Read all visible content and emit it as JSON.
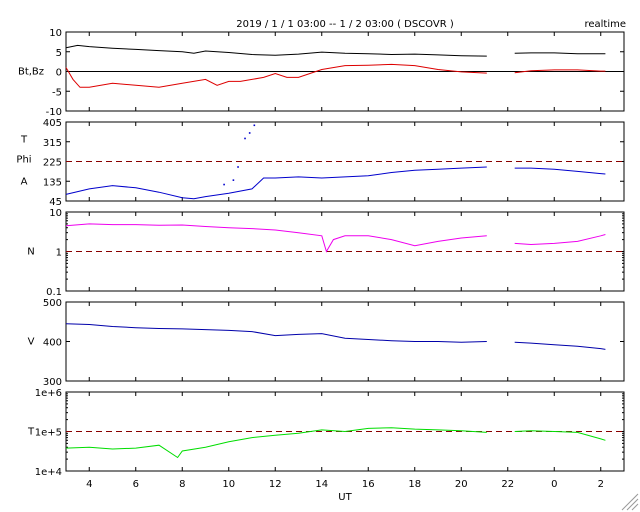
{
  "header": {
    "title": "2019 / 1 / 1  03:00 -- 1 / 2  03:00 ( DSCOVR )",
    "badge": "realtime"
  },
  "chart_data": {
    "type": "line",
    "x_axis": {
      "label": "UT",
      "ticks": [
        "4",
        "6",
        "8",
        "10",
        "12",
        "14",
        "16",
        "18",
        "20",
        "22",
        "0",
        "2"
      ],
      "tick_hours": [
        4,
        6,
        8,
        10,
        12,
        14,
        16,
        18,
        20,
        22,
        24,
        26
      ],
      "range_hours": [
        3,
        27
      ],
      "data_gap_hours": [
        21.1,
        22.3
      ]
    },
    "panels": [
      {
        "ylabel": "Bt,Bz",
        "ylim": [
          -10,
          10
        ],
        "scale": "linear",
        "yticks": [
          "10",
          "5",
          "0",
          "-5",
          "-10"
        ],
        "ytick_values": [
          10,
          5,
          0,
          -5,
          -10
        ],
        "reference_lines": [
          {
            "value": 0,
            "style": "solid"
          }
        ],
        "series": [
          {
            "color": "#000000",
            "points": [
              [
                3,
                6.0
              ],
              [
                3.5,
                6.6
              ],
              [
                4,
                6.3
              ],
              [
                5,
                5.9
              ],
              [
                6,
                5.6
              ],
              [
                7,
                5.3
              ],
              [
                8,
                5.0
              ],
              [
                8.5,
                4.6
              ],
              [
                9,
                5.2
              ],
              [
                10,
                4.8
              ],
              [
                11,
                4.3
              ],
              [
                12,
                4.1
              ],
              [
                13,
                4.4
              ],
              [
                14,
                4.9
              ],
              [
                15,
                4.6
              ],
              [
                16,
                4.5
              ],
              [
                17,
                4.3
              ],
              [
                18,
                4.4
              ],
              [
                19,
                4.2
              ],
              [
                20,
                4.0
              ],
              [
                21.1,
                3.9
              ],
              [
                22.3,
                4.6
              ],
              [
                23,
                4.7
              ],
              [
                24,
                4.7
              ],
              [
                25,
                4.5
              ],
              [
                26,
                4.5
              ],
              [
                26.2,
                4.5
              ]
            ]
          },
          {
            "color": "#dd0000",
            "points": [
              [
                3,
                1.0
              ],
              [
                3.3,
                -2.0
              ],
              [
                3.6,
                -4.0
              ],
              [
                4,
                -4.0
              ],
              [
                5,
                -3.0
              ],
              [
                6,
                -3.5
              ],
              [
                7,
                -4.0
              ],
              [
                8,
                -3.0
              ],
              [
                9,
                -2.0
              ],
              [
                9.5,
                -3.5
              ],
              [
                10,
                -2.5
              ],
              [
                10.5,
                -2.5
              ],
              [
                11,
                -2.0
              ],
              [
                11.5,
                -1.5
              ],
              [
                12,
                -0.5
              ],
              [
                12.5,
                -1.5
              ],
              [
                13,
                -1.5
              ],
              [
                14,
                0.5
              ],
              [
                15,
                1.5
              ],
              [
                16,
                1.6
              ],
              [
                17,
                1.8
              ],
              [
                18,
                1.5
              ],
              [
                19,
                0.5
              ],
              [
                20,
                -0.1
              ],
              [
                21.1,
                -0.4
              ],
              [
                22.3,
                -0.3
              ],
              [
                23,
                0.2
              ],
              [
                24,
                0.4
              ],
              [
                25,
                0.4
              ],
              [
                26,
                0.1
              ],
              [
                26.2,
                0.1
              ]
            ]
          }
        ]
      },
      {
        "ylabel_lines": [
          "T",
          "Phi",
          "A"
        ],
        "ylim": [
          45,
          405
        ],
        "scale": "linear",
        "yticks": [
          "405",
          "315",
          "225",
          "135",
          "45"
        ],
        "ytick_values": [
          405,
          315,
          225,
          135,
          45
        ],
        "reference_lines": [
          {
            "value": 225,
            "style": "dashed",
            "color": "#880000"
          }
        ],
        "series": [
          {
            "color": "#0000cc",
            "points": [
              [
                3,
                75
              ],
              [
                4,
                100
              ],
              [
                5,
                115
              ],
              [
                6,
                105
              ],
              [
                7,
                85
              ],
              [
                8,
                60
              ],
              [
                8.5,
                55
              ],
              [
                9,
                65
              ],
              [
                10,
                80
              ],
              [
                11,
                100
              ],
              [
                11.5,
                150
              ],
              [
                12,
                150
              ],
              [
                13,
                155
              ],
              [
                14,
                150
              ],
              [
                15,
                155
              ],
              [
                16,
                160
              ],
              [
                17,
                175
              ],
              [
                18,
                185
              ],
              [
                19,
                190
              ],
              [
                20,
                195
              ],
              [
                21.1,
                200
              ],
              [
                22.3,
                195
              ],
              [
                23,
                195
              ],
              [
                24,
                190
              ],
              [
                25,
                180
              ],
              [
                26,
                170
              ],
              [
                26.2,
                168
              ]
            ]
          },
          {
            "color": "#0000cc",
            "style": "scatter",
            "points": [
              [
                10.7,
                330
              ],
              [
                10.9,
                355
              ],
              [
                11.1,
                390
              ],
              [
                9.8,
                120
              ],
              [
                10.2,
                140
              ],
              [
                10.4,
                200
              ]
            ]
          }
        ]
      },
      {
        "ylabel": "N",
        "ylim": [
          0.1,
          10
        ],
        "scale": "log",
        "yticks": [
          "10",
          "1",
          "0.1"
        ],
        "ytick_values": [
          10,
          1,
          0.1
        ],
        "reference_lines": [
          {
            "value": 1,
            "style": "dashed",
            "color": "#880000"
          }
        ],
        "series": [
          {
            "color": "#ee00ee",
            "points": [
              [
                3,
                4.5
              ],
              [
                4,
                5.0
              ],
              [
                5,
                4.8
              ],
              [
                6,
                4.8
              ],
              [
                7,
                4.6
              ],
              [
                8,
                4.7
              ],
              [
                9,
                4.3
              ],
              [
                10,
                4.0
              ],
              [
                11,
                3.8
              ],
              [
                12,
                3.5
              ],
              [
                13,
                3.0
              ],
              [
                14,
                2.5
              ],
              [
                14.2,
                1.0
              ],
              [
                14.5,
                2.0
              ],
              [
                15,
                2.5
              ],
              [
                16,
                2.5
              ],
              [
                17,
                2.0
              ],
              [
                18,
                1.4
              ],
              [
                19,
                1.8
              ],
              [
                20,
                2.2
              ],
              [
                21.1,
                2.5
              ],
              [
                22.3,
                1.6
              ],
              [
                23,
                1.5
              ],
              [
                24,
                1.6
              ],
              [
                25,
                1.8
              ],
              [
                26,
                2.5
              ],
              [
                26.2,
                2.7
              ]
            ]
          }
        ]
      },
      {
        "ylabel": "V",
        "ylim": [
          300,
          500
        ],
        "scale": "linear",
        "yticks": [
          "500",
          "400",
          "300"
        ],
        "ytick_values": [
          500,
          400,
          300
        ],
        "reference_lines": [],
        "series": [
          {
            "color": "#0000aa",
            "points": [
              [
                3,
                445
              ],
              [
                4,
                443
              ],
              [
                5,
                438
              ],
              [
                6,
                435
              ],
              [
                7,
                433
              ],
              [
                8,
                432
              ],
              [
                9,
                430
              ],
              [
                10,
                428
              ],
              [
                11,
                425
              ],
              [
                12,
                415
              ],
              [
                13,
                418
              ],
              [
                14,
                420
              ],
              [
                15,
                408
              ],
              [
                16,
                405
              ],
              [
                17,
                402
              ],
              [
                18,
                400
              ],
              [
                19,
                400
              ],
              [
                20,
                398
              ],
              [
                21.1,
                400
              ],
              [
                22.3,
                398
              ],
              [
                23,
                396
              ],
              [
                24,
                392
              ],
              [
                25,
                388
              ],
              [
                26,
                382
              ],
              [
                26.2,
                380
              ]
            ]
          }
        ]
      },
      {
        "ylabel": "T",
        "ylim": [
          10000,
          1000000
        ],
        "scale": "log",
        "yticks": [
          "1e+6",
          "1e+5",
          "1e+4"
        ],
        "ytick_values": [
          1000000,
          100000,
          10000
        ],
        "reference_lines": [
          {
            "value": 100000,
            "style": "dashed",
            "color": "#880000"
          }
        ],
        "series": [
          {
            "color": "#00dd00",
            "points": [
              [
                3,
                38000
              ],
              [
                4,
                40000
              ],
              [
                5,
                36000
              ],
              [
                6,
                38000
              ],
              [
                7,
                45000
              ],
              [
                7.8,
                22000
              ],
              [
                8,
                32000
              ],
              [
                9,
                40000
              ],
              [
                10,
                55000
              ],
              [
                11,
                70000
              ],
              [
                12,
                80000
              ],
              [
                13,
                90000
              ],
              [
                14,
                110000
              ],
              [
                15,
                100000
              ],
              [
                16,
                120000
              ],
              [
                17,
                125000
              ],
              [
                18,
                115000
              ],
              [
                19,
                110000
              ],
              [
                20,
                105000
              ],
              [
                21.1,
                95000
              ],
              [
                22.3,
                100000
              ],
              [
                23,
                105000
              ],
              [
                24,
                100000
              ],
              [
                25,
                95000
              ],
              [
                26,
                65000
              ],
              [
                26.2,
                60000
              ]
            ]
          }
        ]
      }
    ]
  }
}
